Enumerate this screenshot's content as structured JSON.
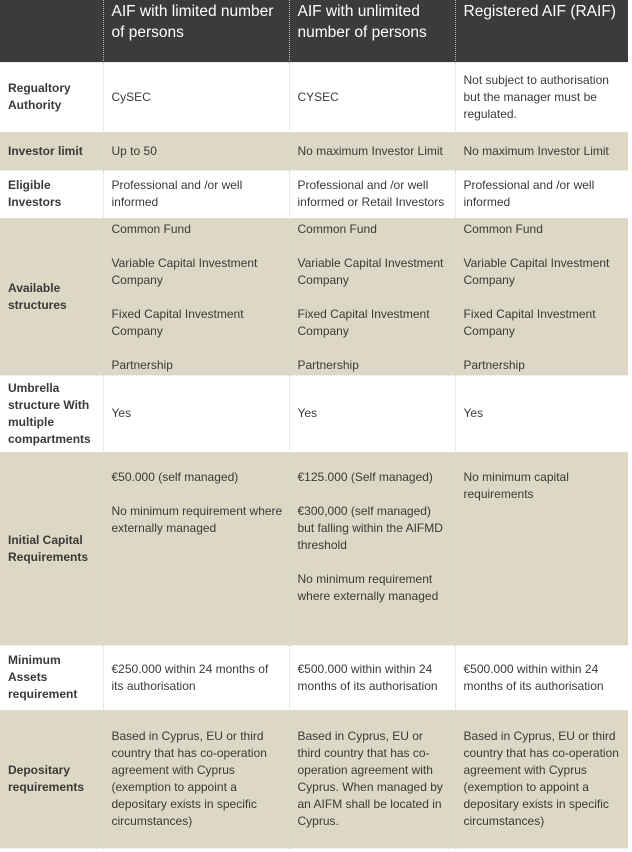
{
  "header": [
    "",
    "AIF with limited number of persons",
    "AIF with unlimited number of persons",
    "Registered AIF (RAIF)"
  ],
  "colors": {
    "header_bg": "#3b3b3b",
    "shaded_row": "#dcd8c5"
  },
  "rows": [
    {
      "label": "Regualtory Authority",
      "shaded": false,
      "cells": [
        [
          "CySEC"
        ],
        [
          "CYSEC"
        ],
        [
          "Not subject to authorisation but the manager must be regulated."
        ]
      ]
    },
    {
      "label": "Investor limit",
      "shaded": true,
      "cells": [
        [
          "Up to 50"
        ],
        [
          "No maximum Investor Limit"
        ],
        [
          "No maximum Investor Limit"
        ]
      ]
    },
    {
      "label": "Eligible Investors",
      "shaded": false,
      "cells": [
        [
          "Professional and /or well informed"
        ],
        [
          "Professional and /or well informed or Retail Investors"
        ],
        [
          "Professional and /or well informed"
        ]
      ]
    },
    {
      "label": "Available structures",
      "shaded": true,
      "cells": [
        [
          "Common Fund",
          "Variable Capital Investment Company",
          "Fixed Capital Investment Company",
          "Partnership"
        ],
        [
          "Common Fund",
          "Variable Capital Investment Company",
          "Fixed Capital Investment Company",
          "Partnership"
        ],
        [
          "Common Fund",
          "Variable Capital Investment Company",
          "Fixed Capital Investment Company",
          "Partnership"
        ]
      ]
    },
    {
      "label": "Umbrella structure With multiple compartments",
      "shaded": false,
      "cells": [
        [
          "Yes"
        ],
        [
          "Yes"
        ],
        [
          "Yes"
        ]
      ]
    },
    {
      "label": "Initial Capital Requirements",
      "shaded": true,
      "cells": [
        [
          "€50.000 (self managed)",
          "No minimum requirement where externally managed"
        ],
        [
          "€125.000 (Self managed)",
          "€300,000 (self managed) but falling within the AIFMD threshold",
          "No minimum requirement where externally managed"
        ],
        [
          "No minimum capital requirements"
        ]
      ]
    },
    {
      "label": "Minimum Assets requirement",
      "shaded": false,
      "cells": [
        [
          "€250.000 within 24 months of its authorisation"
        ],
        [
          "€500.000 within within 24 months of its authorisation"
        ],
        [
          "€500.000 within within 24 months of its authorisation"
        ]
      ]
    },
    {
      "label": "Depositary requirements",
      "shaded": true,
      "cells": [
        [
          "Based in Cyprus, EU or third country that has co-operation agreement with Cyprus (exemption to appoint a depositary exists in specific circumstances)"
        ],
        [
          "Based in Cyprus, EU or third country that has co-operation agreement with Cyprus. When managed by an AIFM shall be located in Cyprus."
        ],
        [
          "Based in Cyprus, EU or third country that has co-operation agreement with Cyprus (exemption to appoint a depositary exists in specific circumstances)"
        ]
      ]
    }
  ]
}
